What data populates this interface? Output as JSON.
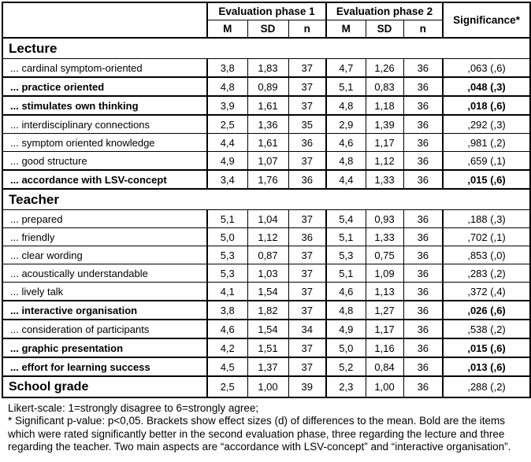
{
  "header": {
    "phase1_label": "Evaluation phase 1",
    "phase2_label": "Evaluation phase 2",
    "significance_label": "Significance*",
    "stat_columns": [
      "M",
      "SD",
      "n"
    ]
  },
  "sections": [
    {
      "title": "Lecture",
      "rows": [
        {
          "label": "... cardinal symptom-oriented",
          "bold": false,
          "m1": "3,8",
          "sd1": "1,83",
          "n1": "37",
          "m2": "4,7",
          "sd2": "1,26",
          "n2": "36",
          "sig": ",063 (,6)"
        },
        {
          "label": "... practice oriented",
          "bold": true,
          "m1": "4,8",
          "sd1": "0,89",
          "n1": "37",
          "m2": "5,1",
          "sd2": "0,83",
          "n2": "36",
          "sig": ",048 (,3)"
        },
        {
          "label": "... stimulates own thinking",
          "bold": true,
          "m1": "3,9",
          "sd1": "1,61",
          "n1": "37",
          "m2": "4,8",
          "sd2": "1,18",
          "n2": "36",
          "sig": ",018 (,6)"
        },
        {
          "label": "... interdisciplinary connections",
          "bold": false,
          "m1": "2,5",
          "sd1": "1,36",
          "n1": "35",
          "m2": "2,9",
          "sd2": "1,39",
          "n2": "36",
          "sig": ",292 (,3)"
        },
        {
          "label": "... symptom oriented knowledge",
          "bold": false,
          "m1": "4,4",
          "sd1": "1,61",
          "n1": "36",
          "m2": "4,6",
          "sd2": "1,17",
          "n2": "36",
          "sig": ",981 (,2)"
        },
        {
          "label": "... good structure",
          "bold": false,
          "m1": "4,9",
          "sd1": "1,07",
          "n1": "37",
          "m2": "4,8",
          "sd2": "1,12",
          "n2": "36",
          "sig": ",659 (,1)"
        },
        {
          "label": "... accordance with LSV-concept",
          "bold": true,
          "m1": "3,4",
          "sd1": "1,76",
          "n1": "36",
          "m2": "4,4",
          "sd2": "1,33",
          "n2": "36",
          "sig": ",015 (,6)"
        }
      ]
    },
    {
      "title": "Teacher",
      "rows": [
        {
          "label": "... prepared",
          "bold": false,
          "m1": "5,1",
          "sd1": "1,04",
          "n1": "37",
          "m2": "5,4",
          "sd2": "0,93",
          "n2": "36",
          "sig": ",188 (,3)"
        },
        {
          "label": "... friendly",
          "bold": false,
          "m1": "5,0",
          "sd1": "1,12",
          "n1": "36",
          "m2": "5,1",
          "sd2": "1,33",
          "n2": "36",
          "sig": ",702 (,1)"
        },
        {
          "label": "... clear wording",
          "bold": false,
          "m1": "5,3",
          "sd1": "0,87",
          "n1": "37",
          "m2": "5,3",
          "sd2": "0,75",
          "n2": "36",
          "sig": ",853 (,0)"
        },
        {
          "label": "... acoustically understandable",
          "bold": false,
          "m1": "5,3",
          "sd1": "1,03",
          "n1": "37",
          "m2": "5,1",
          "sd2": "1,09",
          "n2": "36",
          "sig": ",283 (,2)"
        },
        {
          "label": "... lively talk",
          "bold": false,
          "m1": "4,1",
          "sd1": "1,54",
          "n1": "37",
          "m2": "4,6",
          "sd2": "1,13",
          "n2": "36",
          "sig": ",372 (,4)"
        },
        {
          "label": "... interactive organisation",
          "bold": true,
          "m1": "3,8",
          "sd1": "1,82",
          "n1": "37",
          "m2": "4,8",
          "sd2": "1,27",
          "n2": "36",
          "sig": ",026 (,6)"
        },
        {
          "label": "... consideration of participants",
          "bold": false,
          "m1": "4,6",
          "sd1": "1,54",
          "n1": "34",
          "m2": "4,9",
          "sd2": "1,17",
          "n2": "36",
          "sig": ",538 (,2)"
        },
        {
          "label": "... graphic presentation",
          "bold": true,
          "m1": "4,2",
          "sd1": "1,51",
          "n1": "37",
          "m2": "5,0",
          "sd2": "1,16",
          "n2": "36",
          "sig": ",015 (,6)"
        },
        {
          "label": "... effort for learning success",
          "bold": true,
          "m1": "4,5",
          "sd1": "1,37",
          "n1": "37",
          "m2": "5,2",
          "sd2": "0,84",
          "n2": "36",
          "sig": ",013 (,6)"
        }
      ]
    }
  ],
  "summary": {
    "label": "School grade",
    "m1": "2,5",
    "sd1": "1,00",
    "n1": "39",
    "m2": "2,3",
    "sd2": "1,00",
    "n2": "36",
    "sig": ",288 (,2)"
  },
  "footnotes": {
    "likert": "Likert-scale: 1=strongly disagree to 6=strongly agree;",
    "significance": "* Significant p-value: p<0,05. Brackets show effect sizes (d) of differences to the mean. Bold are the items which were rated significantly better in the second evaluation phase, three regarding the lecture and three regarding the teacher. Two main aspects are “accordance with LSV-concept” and “interactive organisation”."
  }
}
